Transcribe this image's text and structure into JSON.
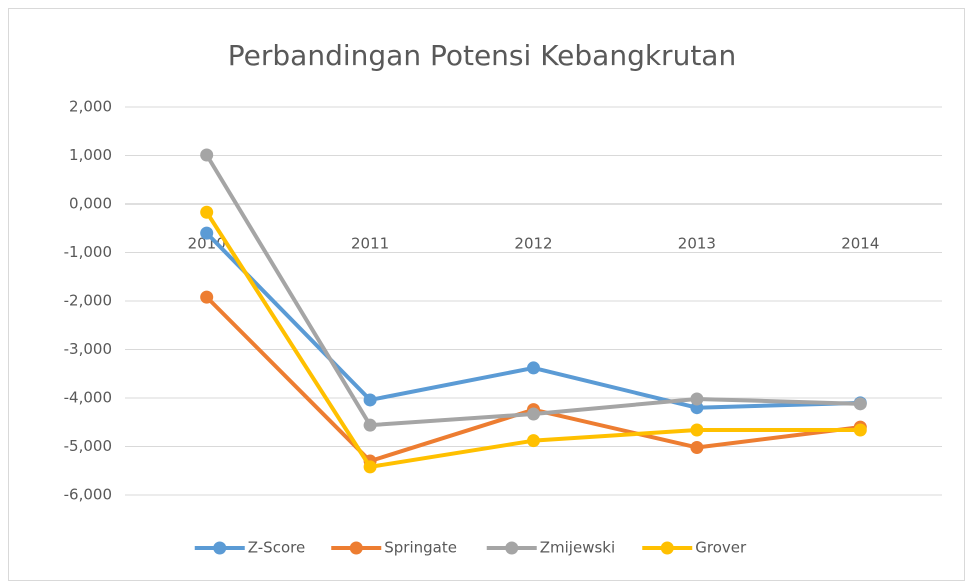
{
  "chart_data": {
    "type": "line",
    "title": "Perbandingan Potensi Kebangkrutan",
    "categories": [
      "2010",
      "2011",
      "2012",
      "2013",
      "2014"
    ],
    "series": [
      {
        "name": "Z-Score",
        "color": "#5b9bd5",
        "values": [
          -0.6,
          -4.04,
          -3.38,
          -4.2,
          -4.1
        ]
      },
      {
        "name": "Springate",
        "color": "#ed7d31",
        "values": [
          -1.92,
          -5.3,
          -4.24,
          -5.02,
          -4.6
        ]
      },
      {
        "name": "Zmijewski",
        "color": "#a5a5a5",
        "values": [
          1.01,
          -4.56,
          -4.33,
          -4.02,
          -4.12
        ]
      },
      {
        "name": "Grover",
        "color": "#ffc000",
        "values": [
          -0.17,
          -5.42,
          -4.88,
          -4.66,
          -4.66
        ]
      }
    ],
    "ylim": [
      -6,
      2
    ],
    "yticks": [
      {
        "value": 2,
        "label": "2,000"
      },
      {
        "value": 1,
        "label": "1,000"
      },
      {
        "value": 0,
        "label": "0,000"
      },
      {
        "value": -1,
        "label": "-1,000"
      },
      {
        "value": -2,
        "label": "-2,000"
      },
      {
        "value": -3,
        "label": "-3,000"
      },
      {
        "value": -4,
        "label": "-4,000"
      },
      {
        "value": -5,
        "label": "-5,000"
      },
      {
        "value": -6,
        "label": "-6,000"
      }
    ],
    "grid": true,
    "legend": "bottom"
  }
}
